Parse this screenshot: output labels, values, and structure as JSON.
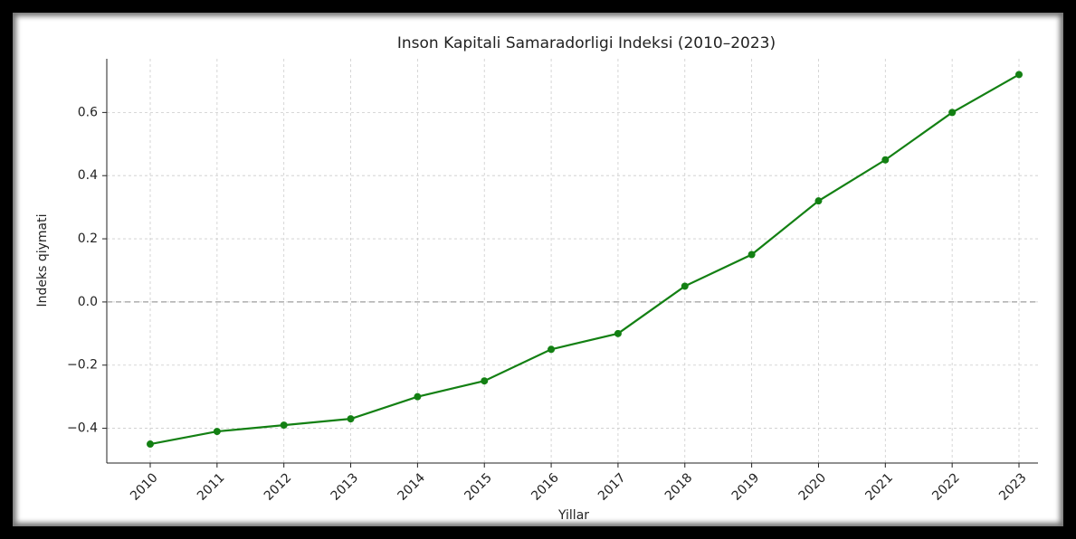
{
  "chart_data": {
    "type": "line",
    "title": "Inson Kapitali Samaradorligi Indeksi (2010–2023)",
    "x_label": "Yillar",
    "y_label": "Indeks qiymati",
    "categories": [
      "2010",
      "2011",
      "2012",
      "2013",
      "2014",
      "2015",
      "2016",
      "2017",
      "2018",
      "2019",
      "2020",
      "2021",
      "2022",
      "2023"
    ],
    "series": [
      {
        "name": "Indeks",
        "color": "#138013",
        "values": [
          -0.45,
          -0.41,
          -0.39,
          -0.37,
          -0.3,
          -0.25,
          -0.15,
          -0.1,
          0.05,
          0.15,
          0.32,
          0.45,
          0.6,
          0.72
        ]
      }
    ],
    "ylim": [
      -0.51,
      0.77
    ],
    "yticks": [
      {
        "value": -0.4,
        "label": "−0.4"
      },
      {
        "value": -0.2,
        "label": "−0.2"
      },
      {
        "value": 0.0,
        "label": "0.0"
      },
      {
        "value": 0.2,
        "label": "0.2"
      },
      {
        "value": 0.4,
        "label": "0.4"
      },
      {
        "value": 0.6,
        "label": "0.6"
      }
    ],
    "reference_line": 0,
    "grid": true
  }
}
